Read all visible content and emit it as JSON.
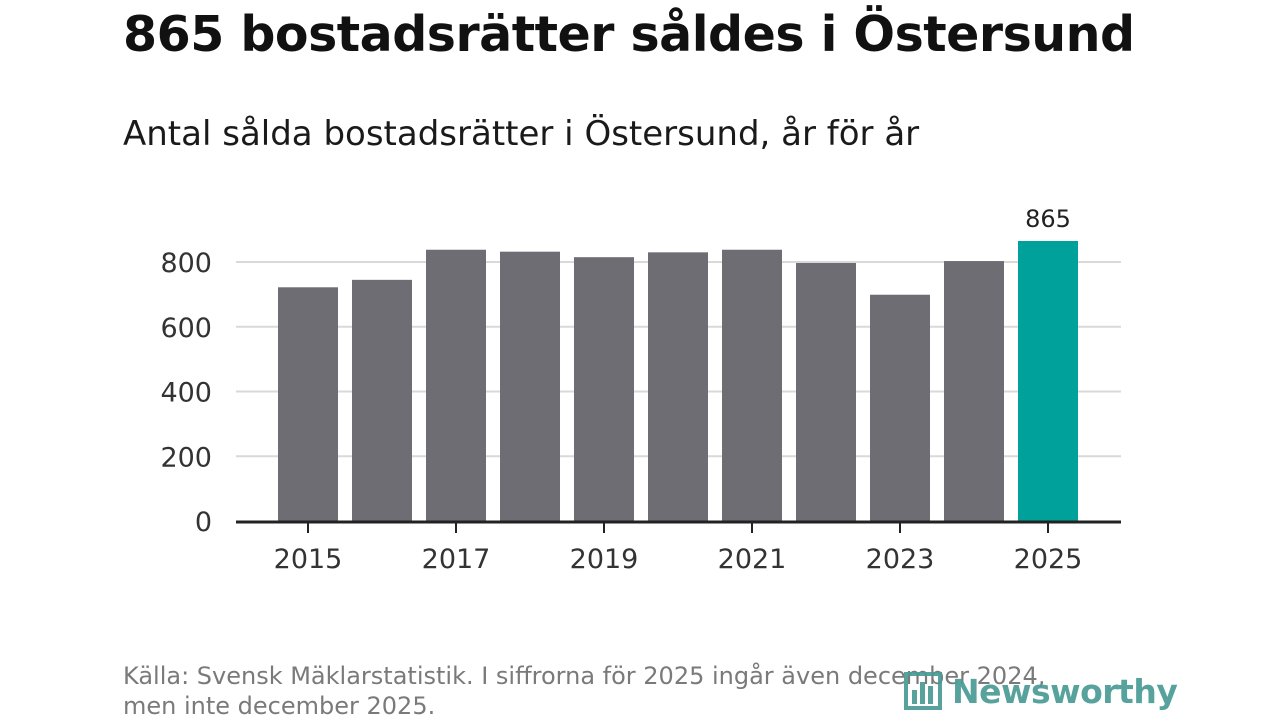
{
  "title": "865 bostadsrätter såldes i Östersund",
  "subtitle": "Antal sålda bostadsrätter i Östersund, år för år",
  "source": {
    "line1": "Källa: Svensk Mäklarstatistik. I siffrorna för 2025 ingår även december 2024,",
    "line2": "men inte december 2025."
  },
  "logo": {
    "text": "Newsworthy",
    "icon": "bar-chart-logo-icon"
  },
  "colors": {
    "bar": "#6e6d73",
    "highlight": "#00a19a",
    "grid": "#d9d9d9",
    "axis": "#222222",
    "brand": "#4a9b96"
  },
  "chart_data": {
    "type": "bar",
    "title": "Antal sålda bostadsrätter i Östersund, år för år",
    "xlabel": "",
    "ylabel": "",
    "categories": [
      "2015",
      "2016",
      "2017",
      "2018",
      "2019",
      "2020",
      "2021",
      "2022",
      "2023",
      "2024",
      "2025"
    ],
    "values": [
      722,
      745,
      838,
      832,
      815,
      830,
      838,
      797,
      699,
      803,
      865
    ],
    "ylim": [
      0,
      865
    ],
    "yticks": [
      0,
      200,
      400,
      600,
      800
    ],
    "xtick_labels": [
      "2015",
      "2017",
      "2019",
      "2021",
      "2023",
      "2025"
    ],
    "highlight_index": 10,
    "data_labels": [
      {
        "index": 10,
        "text": "865"
      }
    ],
    "grid": true
  }
}
